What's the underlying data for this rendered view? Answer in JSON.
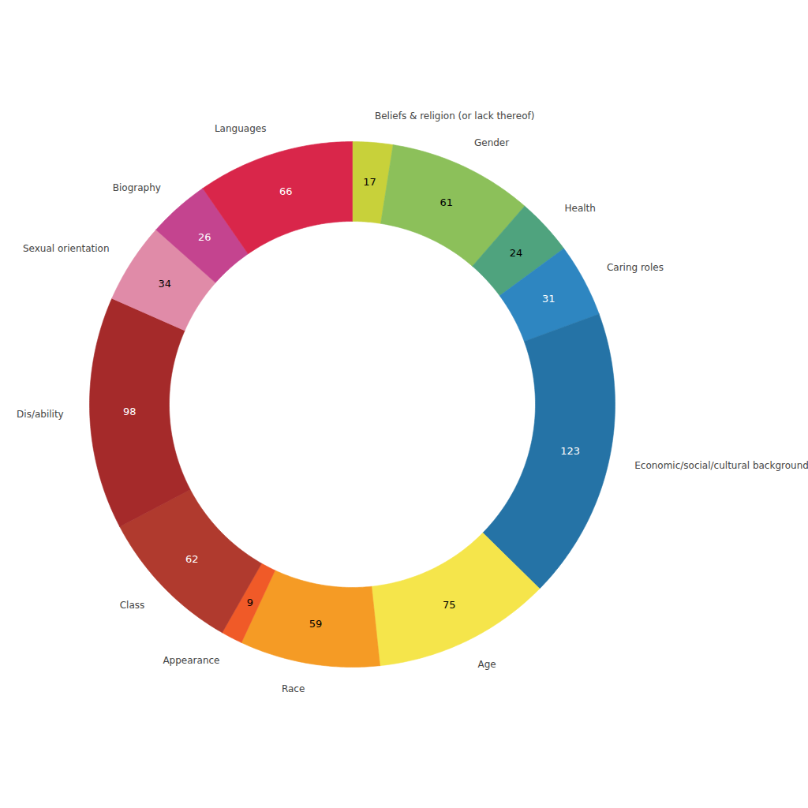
{
  "chart_data": {
    "type": "pie",
    "categories": [
      "Beliefs & religion (or lack thereof)",
      "Gender",
      "Health",
      "Caring roles",
      "Economic/social/cultural background",
      "Age",
      "Race",
      "Appearance",
      "Class",
      "Dis/ability",
      "Sexual orientation",
      "Biography",
      "Languages"
    ],
    "values": [
      17,
      61,
      24,
      31,
      123,
      75,
      59,
      9,
      62,
      98,
      34,
      26,
      66
    ],
    "colors": [
      "#c8d13a",
      "#8cc05a",
      "#4fa37e",
      "#2e86c1",
      "#2573a6",
      "#f5e54b",
      "#f59b25",
      "#f05a28",
      "#b03a2e",
      "#a52a2a",
      "#e08ba8",
      "#c4448f",
      "#d9264a"
    ],
    "data_labels": true
  }
}
